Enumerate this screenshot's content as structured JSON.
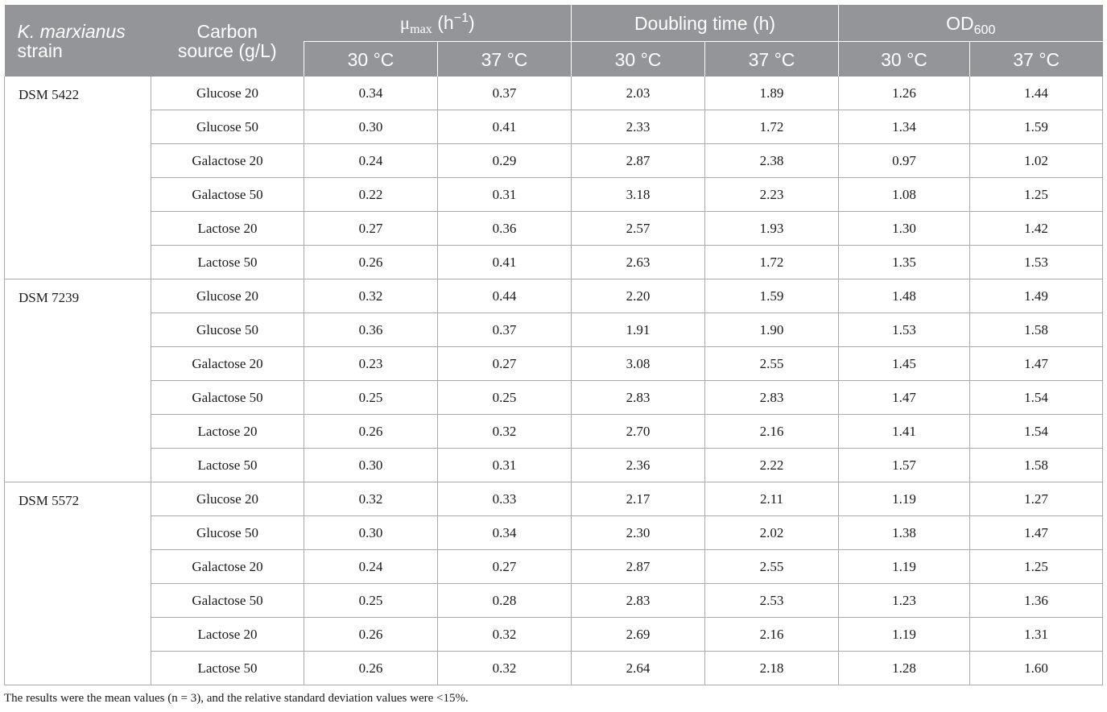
{
  "header": {
    "strain_italic": "K. marxianus",
    "strain_rest": "strain",
    "carbon": "Carbon source (g/L)",
    "mu_symbol": "μ",
    "mu_sub": "max",
    "mu_unit_pre": " (h",
    "mu_unit_sup": "−1",
    "mu_unit_post": ")",
    "doubling": "Doubling time (h)",
    "od_main": "OD",
    "od_sub": "600",
    "temp_30": "30 °C",
    "temp_37": "37 °C"
  },
  "strains": [
    {
      "name": "DSM 5422",
      "rows": [
        [
          "Glucose 20",
          "0.34",
          "0.37",
          "2.03",
          "1.89",
          "1.26",
          "1.44"
        ],
        [
          "Glucose 50",
          "0.30",
          "0.41",
          "2.33",
          "1.72",
          "1.34",
          "1.59"
        ],
        [
          "Galactose 20",
          "0.24",
          "0.29",
          "2.87",
          "2.38",
          "0.97",
          "1.02"
        ],
        [
          "Galactose 50",
          "0.22",
          "0.31",
          "3.18",
          "2.23",
          "1.08",
          "1.25"
        ],
        [
          "Lactose 20",
          "0.27",
          "0.36",
          "2.57",
          "1.93",
          "1.30",
          "1.42"
        ],
        [
          "Lactose 50",
          "0.26",
          "0.41",
          "2.63",
          "1.72",
          "1.35",
          "1.53"
        ]
      ]
    },
    {
      "name": "DSM 7239",
      "rows": [
        [
          "Glucose 20",
          "0.32",
          "0.44",
          "2.20",
          "1.59",
          "1.48",
          "1.49"
        ],
        [
          "Glucose 50",
          "0.36",
          "0.37",
          "1.91",
          "1.90",
          "1.53",
          "1.58"
        ],
        [
          "Galactose 20",
          "0.23",
          "0.27",
          "3.08",
          "2.55",
          "1.45",
          "1.47"
        ],
        [
          "Galactose 50",
          "0.25",
          "0.25",
          "2.83",
          "2.83",
          "1.47",
          "1.54"
        ],
        [
          "Lactose 20",
          "0.26",
          "0.32",
          "2.70",
          "2.16",
          "1.41",
          "1.54"
        ],
        [
          "Lactose 50",
          "0.30",
          "0.31",
          "2.36",
          "2.22",
          "1.57",
          "1.58"
        ]
      ]
    },
    {
      "name": "DSM 5572",
      "rows": [
        [
          "Glucose 20",
          "0.32",
          "0.33",
          "2.17",
          "2.11",
          "1.19",
          "1.27"
        ],
        [
          "Glucose 50",
          "0.30",
          "0.34",
          "2.30",
          "2.02",
          "1.38",
          "1.47"
        ],
        [
          "Galactose 20",
          "0.24",
          "0.27",
          "2.87",
          "2.55",
          "1.19",
          "1.25"
        ],
        [
          "Galactose 50",
          "0.25",
          "0.28",
          "2.83",
          "2.53",
          "1.23",
          "1.36"
        ],
        [
          "Lactose 20",
          "0.26",
          "0.32",
          "2.69",
          "2.16",
          "1.19",
          "1.31"
        ],
        [
          "Lactose 50",
          "0.26",
          "0.32",
          "2.64",
          "2.18",
          "1.28",
          "1.60"
        ]
      ]
    }
  ],
  "footnote": "The results were the mean values (n = 3), and the relative standard deviation values were <15%.",
  "colors": {
    "header_bg": "#939598",
    "header_text": "#ffffff",
    "grid": "#aaaaaa"
  }
}
